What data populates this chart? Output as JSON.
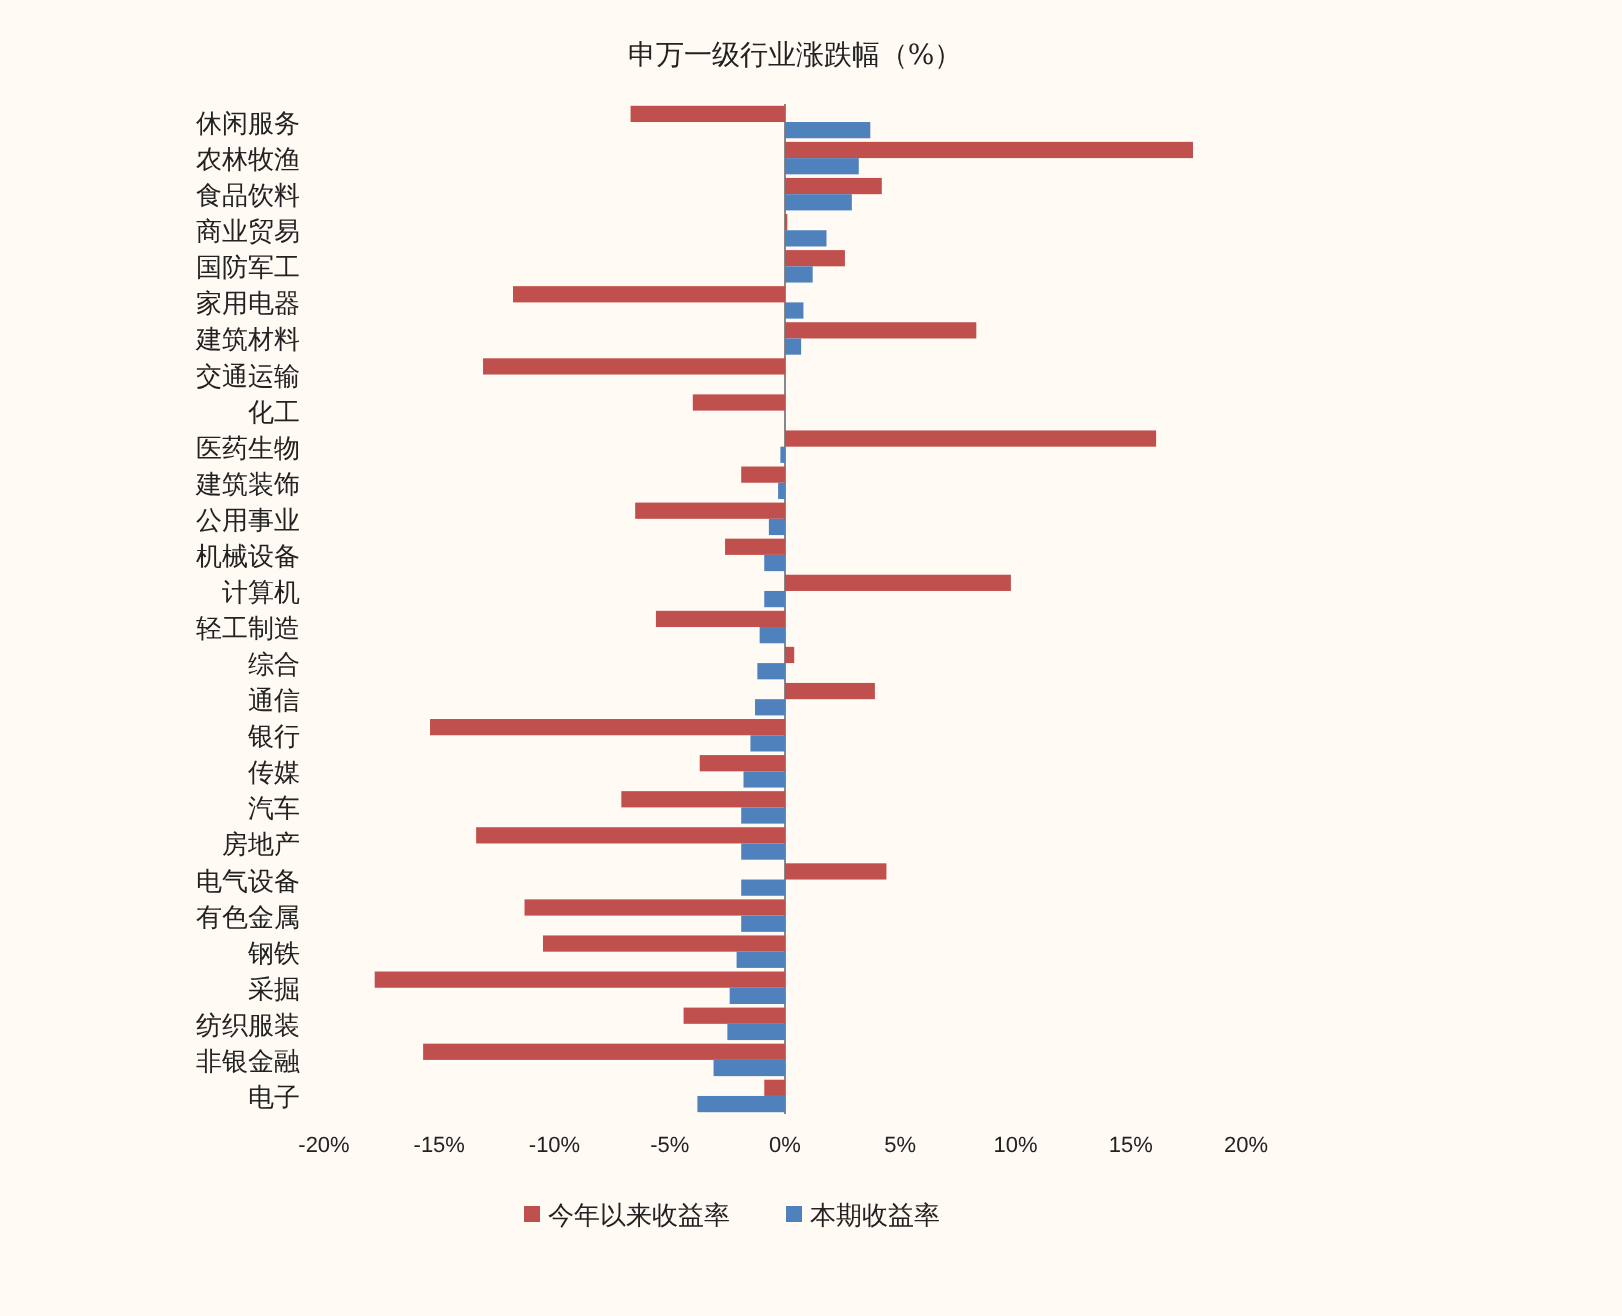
{
  "chart_data": {
    "type": "bar",
    "orientation": "horizontal",
    "title": "申万一级行业涨跌幅（%）",
    "categories": [
      "休闲服务",
      "农林牧渔",
      "食品饮料",
      "商业贸易",
      "国防军工",
      "家用电器",
      "建筑材料",
      "交通运输",
      "化工",
      "医药生物",
      "建筑装饰",
      "公用事业",
      "机械设备",
      "计算机",
      "轻工制造",
      "综合",
      "通信",
      "银行",
      "传媒",
      "汽车",
      "房地产",
      "电气设备",
      "有色金属",
      "钢铁",
      "采掘",
      "纺织服装",
      "非银金融",
      "电子"
    ],
    "series": [
      {
        "name": "今年以来收益率",
        "color": "#c0504d",
        "values": [
          -6.7,
          17.7,
          4.2,
          0.1,
          2.6,
          -11.8,
          8.3,
          -13.1,
          -4.0,
          16.1,
          -1.9,
          -6.5,
          -2.6,
          9.8,
          -5.6,
          0.4,
          3.9,
          -15.4,
          -3.7,
          -7.1,
          -13.4,
          4.4,
          -11.3,
          -10.5,
          -17.8,
          -4.4,
          -15.7,
          -0.9
        ]
      },
      {
        "name": "本期收益率",
        "color": "#4f81bd",
        "values": [
          3.7,
          3.2,
          2.9,
          1.8,
          1.2,
          0.8,
          0.7,
          0.0,
          0.0,
          -0.2,
          -0.3,
          -0.7,
          -0.9,
          -0.9,
          -1.1,
          -1.2,
          -1.3,
          -1.5,
          -1.8,
          -1.9,
          -1.9,
          -1.9,
          -1.9,
          -2.1,
          -2.4,
          -2.5,
          -3.1,
          -3.8
        ]
      }
    ],
    "xlim": [
      -20,
      20
    ],
    "xticks": [
      {
        "value": -20,
        "label": "-20%"
      },
      {
        "value": -15,
        "label": "-15%"
      },
      {
        "value": -10,
        "label": "-10%"
      },
      {
        "value": -5,
        "label": "-5%"
      },
      {
        "value": 0,
        "label": "0%"
      },
      {
        "value": 5,
        "label": "5%"
      },
      {
        "value": 10,
        "label": "10%"
      },
      {
        "value": 15,
        "label": "15%"
      },
      {
        "value": 20,
        "label": "20%"
      }
    ],
    "legend": "bottom"
  }
}
